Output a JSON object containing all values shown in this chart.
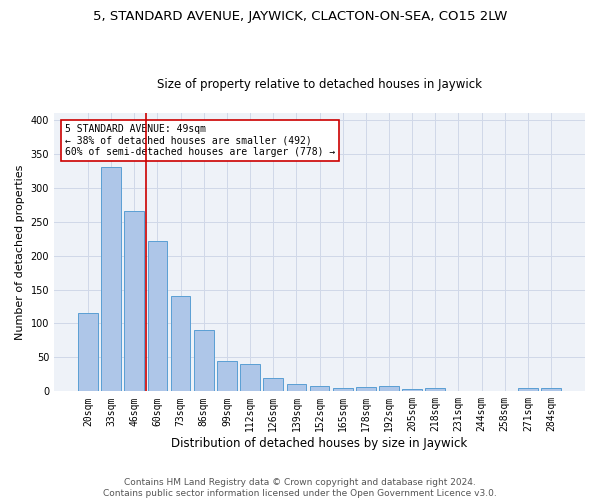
{
  "title": "5, STANDARD AVENUE, JAYWICK, CLACTON-ON-SEA, CO15 2LW",
  "subtitle": "Size of property relative to detached houses in Jaywick",
  "xlabel": "Distribution of detached houses by size in Jaywick",
  "ylabel": "Number of detached properties",
  "categories": [
    "20sqm",
    "33sqm",
    "46sqm",
    "60sqm",
    "73sqm",
    "86sqm",
    "99sqm",
    "112sqm",
    "126sqm",
    "139sqm",
    "152sqm",
    "165sqm",
    "178sqm",
    "192sqm",
    "205sqm",
    "218sqm",
    "231sqm",
    "244sqm",
    "258sqm",
    "271sqm",
    "284sqm"
  ],
  "values": [
    115,
    330,
    265,
    222,
    141,
    90,
    44,
    41,
    20,
    11,
    8,
    5,
    7,
    8,
    3,
    5,
    0,
    0,
    0,
    5,
    5
  ],
  "bar_color": "#aec6e8",
  "bar_edge_color": "#5a9fd4",
  "vline_x": 2.5,
  "vline_color": "#cc0000",
  "annotation_text": "5 STANDARD AVENUE: 49sqm\n← 38% of detached houses are smaller (492)\n60% of semi-detached houses are larger (778) →",
  "annotation_box_color": "#ffffff",
  "annotation_box_edge_color": "#cc0000",
  "footer": "Contains HM Land Registry data © Crown copyright and database right 2024.\nContains public sector information licensed under the Open Government Licence v3.0.",
  "ylim": [
    0,
    410
  ],
  "grid_color": "#d0d8e8",
  "bg_color": "#eef2f8",
  "title_fontsize": 9.5,
  "subtitle_fontsize": 8.5,
  "xlabel_fontsize": 8.5,
  "ylabel_fontsize": 8,
  "tick_fontsize": 7,
  "annot_fontsize": 7,
  "footer_fontsize": 6.5
}
